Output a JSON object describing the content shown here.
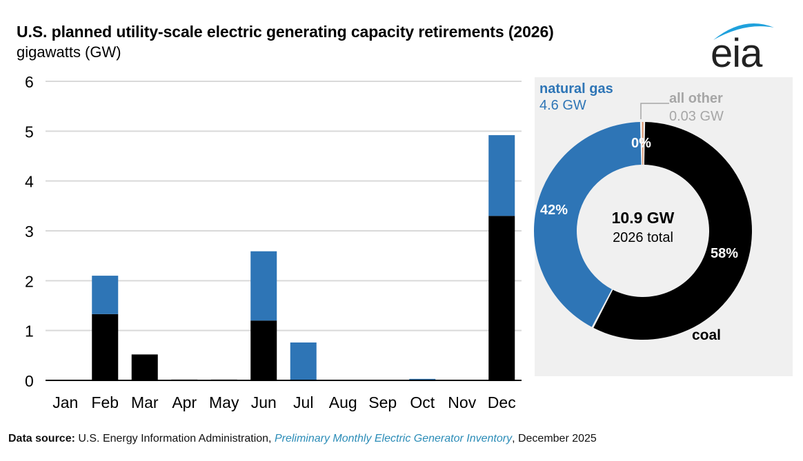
{
  "header": {
    "title": "U.S. planned utility-scale electric generating capacity retirements (2026)",
    "subtitle": "gigawatts (GW)",
    "logo_text": "eia"
  },
  "colors": {
    "coal": "#000000",
    "natural_gas": "#2e75b6",
    "all_other": "#d9895b",
    "other_bar": "#a6a6a6",
    "gridline": "#d9d9d9",
    "panel_bg": "#f0f0f0",
    "logo_arc": "#1fa1dc"
  },
  "chart_data": [
    {
      "type": "bar",
      "stacked": true,
      "title": "U.S. planned utility-scale electric generating capacity retirements (2026)",
      "ylabel": "gigawatts (GW)",
      "xlabel": "",
      "ylim": [
        0,
        6
      ],
      "yticks": [
        "0",
        "1",
        "2",
        "3",
        "4",
        "5",
        "6"
      ],
      "grid": true,
      "categories": [
        "Jan",
        "Feb",
        "Mar",
        "Apr",
        "May",
        "Jun",
        "Jul",
        "Aug",
        "Sep",
        "Oct",
        "Nov",
        "Dec"
      ],
      "series": [
        {
          "name": "coal",
          "color": "#000000",
          "values": [
            0,
            1.33,
            0.52,
            0,
            0,
            1.2,
            0,
            0,
            0,
            0,
            0,
            3.3
          ]
        },
        {
          "name": "natural gas",
          "color": "#2e75b6",
          "values": [
            0,
            0.77,
            0,
            0,
            0,
            1.39,
            0.76,
            0,
            0,
            0.03,
            0,
            1.62
          ]
        },
        {
          "name": "all other",
          "color": "#a6a6a6",
          "values": [
            0,
            0,
            0,
            0.02,
            0.02,
            0,
            0,
            0,
            0,
            0,
            0,
            0
          ]
        }
      ]
    },
    {
      "type": "pie",
      "donut": true,
      "center_value": "10.9 GW",
      "center_label": "2026 total",
      "slices": [
        {
          "name": "coal",
          "label": "coal",
          "percent_label": "58%",
          "value": 6.3,
          "color": "#000000"
        },
        {
          "name": "natural gas",
          "label": "natural gas",
          "value_label": "4.6 GW",
          "percent_label": "42%",
          "value": 4.6,
          "color": "#2e75b6"
        },
        {
          "name": "all other",
          "label": "all other",
          "value_label": "0.03 GW",
          "percent_label": "0%",
          "value": 0.03,
          "color": "#d9895b"
        }
      ]
    }
  ],
  "footer": {
    "source_label": "Data source:",
    "source_org": "U.S. Energy Information Administration,",
    "publication": "Preliminary Monthly Electric Generator Inventory",
    "date": ", December 2025"
  }
}
